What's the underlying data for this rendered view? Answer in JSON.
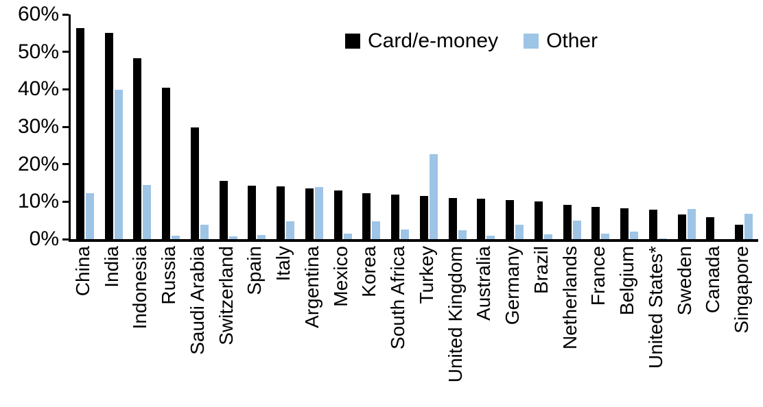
{
  "chart_data": {
    "type": "bar",
    "title": "",
    "xlabel": "",
    "ylabel": "",
    "categories": [
      "China",
      "India",
      "Indonesia",
      "Russia",
      "Saudi Arabia",
      "Switzerland",
      "Spain",
      "Italy",
      "Argentina",
      "Mexico",
      "Korea",
      "South Africa",
      "Turkey",
      "United Kingdom",
      "Australia",
      "Germany",
      "Brazil",
      "Netherlands",
      "France",
      "Belgium",
      "United States*",
      "Sweden",
      "Canada",
      "Singapore"
    ],
    "series": [
      {
        "name": "Card/e-money",
        "color": "#000000",
        "values": [
          56.3,
          55.0,
          48.3,
          40.5,
          29.8,
          15.6,
          14.2,
          14.1,
          13.5,
          13.0,
          12.3,
          11.9,
          11.6,
          11.0,
          10.8,
          10.5,
          10.0,
          9.2,
          8.6,
          8.2,
          7.9,
          6.5,
          5.9,
          3.8
        ]
      },
      {
        "name": "Other",
        "color": "#9EC4E6",
        "values": [
          12.3,
          39.8,
          14.5,
          1.0,
          3.9,
          0.8,
          1.1,
          4.7,
          13.9,
          1.4,
          4.7,
          2.5,
          22.6,
          2.3,
          1.0,
          3.9,
          1.2,
          4.9,
          1.5,
          2.1,
          0.2,
          8.1,
          0,
          6.7
        ]
      }
    ],
    "ylim": [
      0,
      60
    ],
    "ytick_values": [
      0,
      10,
      20,
      30,
      40,
      50,
      60
    ],
    "yticks": [
      "0%",
      "10%",
      "20%",
      "30%",
      "40%",
      "50%",
      "60%"
    ],
    "grid": false,
    "legend_position": "top-center",
    "x_label_rotation": 90
  },
  "axis": {
    "line_color": "#000000",
    "text_color": "#000000"
  }
}
